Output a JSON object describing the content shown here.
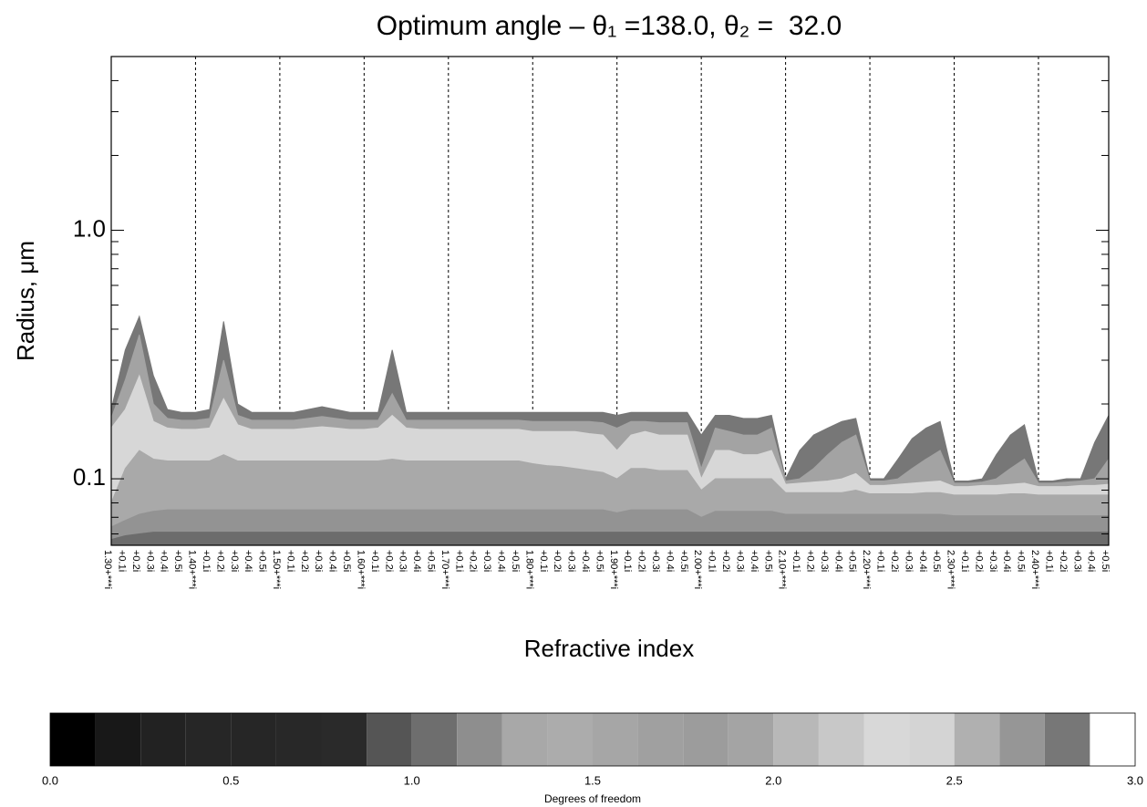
{
  "chart_data": {
    "type": "contour",
    "title": "Optimum angle – θ₁ =138.0, θ₂ =  32.0",
    "x_label": "Refractive index",
    "y_label": "Radius, μm",
    "y_log": true,
    "ylim": [
      0.054,
      5
    ],
    "yticks": [
      0.1,
      {
        "value": 1,
        "label": "1.0"
      }
    ],
    "yminorticks": [
      0.06,
      0.07,
      0.08,
      0.09,
      0.2,
      0.3,
      0.4,
      0.5,
      0.6,
      0.7,
      0.8,
      0.9,
      2,
      3,
      4,
      5
    ],
    "background": "#ffffff",
    "categories": [
      "1.30+***i",
      "+0.1i",
      "+0.2i",
      "+0.3i",
      "+0.4i",
      "+0.5i",
      "1.40+***i",
      "+0.1i",
      "+0.2i",
      "+0.3i",
      "+0.4i",
      "+0.5i",
      "1.50+***i",
      "+0.1i",
      "+0.2i",
      "+0.3i",
      "+0.4i",
      "+0.5i",
      "1.60+***i",
      "+0.1i",
      "+0.2i",
      "+0.3i",
      "+0.4i",
      "+0.5i",
      "1.70+***i",
      "+0.1i",
      "+0.2i",
      "+0.3i",
      "+0.4i",
      "+0.5i",
      "1.80+***i",
      "+0.1i",
      "+0.2i",
      "+0.3i",
      "+0.4i",
      "+0.5i",
      "1.90+***i",
      "+0.1i",
      "+0.2i",
      "+0.3i",
      "+0.4i",
      "+0.5i",
      "2.00+***i",
      "+0.1i",
      "+0.2i",
      "+0.3i",
      "+0.4i",
      "+0.5i",
      "2.10+***i",
      "+0.1i",
      "+0.2i",
      "+0.3i",
      "+0.4i",
      "+0.5i",
      "2.20+***i",
      "+0.1i",
      "+0.2i",
      "+0.3i",
      "+0.4i",
      "+0.5i",
      "2.30+***i",
      "+0.1i",
      "+0.2i",
      "+0.3i",
      "+0.4i",
      "+0.5i",
      "2.40+***i",
      "+0.1i",
      "+0.2i",
      "+0.3i",
      "+0.4i",
      "+0.5i"
    ],
    "series": [
      {
        "color": "#777777",
        "values": [
          0.19,
          0.33,
          0.45,
          0.26,
          0.19,
          0.185,
          0.185,
          0.19,
          0.43,
          0.2,
          0.185,
          0.185,
          0.185,
          0.185,
          0.19,
          0.195,
          0.19,
          0.185,
          0.185,
          0.185,
          0.33,
          0.185,
          0.185,
          0.185,
          0.185,
          0.185,
          0.185,
          0.185,
          0.185,
          0.185,
          0.185,
          0.185,
          0.185,
          0.185,
          0.185,
          0.185,
          0.18,
          0.185,
          0.185,
          0.185,
          0.185,
          0.185,
          0.15,
          0.18,
          0.18,
          0.175,
          0.175,
          0.18,
          0.1,
          0.13,
          0.15,
          0.16,
          0.17,
          0.175,
          0.1,
          0.1,
          0.12,
          0.145,
          0.16,
          0.17,
          0.098,
          0.098,
          0.1,
          0.125,
          0.15,
          0.165,
          0.098,
          0.098,
          0.1,
          0.1,
          0.14,
          0.18
        ]
      },
      {
        "color": "#a3a3a3",
        "values": [
          0.175,
          0.25,
          0.38,
          0.2,
          0.175,
          0.172,
          0.172,
          0.175,
          0.3,
          0.18,
          0.172,
          0.172,
          0.172,
          0.172,
          0.175,
          0.178,
          0.175,
          0.172,
          0.172,
          0.172,
          0.22,
          0.172,
          0.172,
          0.172,
          0.172,
          0.172,
          0.172,
          0.172,
          0.172,
          0.172,
          0.17,
          0.17,
          0.17,
          0.17,
          0.17,
          0.168,
          0.16,
          0.17,
          0.17,
          0.168,
          0.168,
          0.168,
          0.11,
          0.16,
          0.155,
          0.15,
          0.15,
          0.16,
          0.098,
          0.1,
          0.11,
          0.125,
          0.14,
          0.15,
          0.098,
          0.098,
          0.1,
          0.11,
          0.12,
          0.13,
          0.096,
          0.096,
          0.097,
          0.1,
          0.11,
          0.12,
          0.096,
          0.096,
          0.097,
          0.098,
          0.1,
          0.12
        ]
      },
      {
        "color": "#d7d7d7",
        "values": [
          0.16,
          0.19,
          0.26,
          0.17,
          0.16,
          0.158,
          0.158,
          0.16,
          0.21,
          0.165,
          0.158,
          0.158,
          0.158,
          0.158,
          0.16,
          0.162,
          0.16,
          0.158,
          0.158,
          0.16,
          0.18,
          0.16,
          0.158,
          0.158,
          0.158,
          0.158,
          0.158,
          0.158,
          0.158,
          0.158,
          0.155,
          0.155,
          0.155,
          0.155,
          0.152,
          0.15,
          0.13,
          0.15,
          0.155,
          0.15,
          0.15,
          0.15,
          0.1,
          0.13,
          0.13,
          0.125,
          0.125,
          0.13,
          0.095,
          0.096,
          0.097,
          0.098,
          0.1,
          0.105,
          0.094,
          0.094,
          0.095,
          0.096,
          0.097,
          0.098,
          0.093,
          0.093,
          0.094,
          0.094,
          0.095,
          0.096,
          0.093,
          0.093,
          0.093,
          0.094,
          0.094,
          0.095
        ]
      },
      {
        "color": "#a9a9a9",
        "values": [
          0.08,
          0.11,
          0.13,
          0.12,
          0.118,
          0.118,
          0.118,
          0.118,
          0.125,
          0.118,
          0.118,
          0.118,
          0.118,
          0.118,
          0.118,
          0.118,
          0.118,
          0.118,
          0.118,
          0.118,
          0.12,
          0.118,
          0.118,
          0.118,
          0.118,
          0.118,
          0.118,
          0.118,
          0.118,
          0.118,
          0.115,
          0.113,
          0.112,
          0.11,
          0.108,
          0.106,
          0.1,
          0.11,
          0.11,
          0.108,
          0.108,
          0.108,
          0.09,
          0.1,
          0.1,
          0.1,
          0.1,
          0.1,
          0.088,
          0.088,
          0.088,
          0.088,
          0.088,
          0.09,
          0.087,
          0.087,
          0.087,
          0.087,
          0.088,
          0.088,
          0.086,
          0.086,
          0.086,
          0.086,
          0.087,
          0.087,
          0.086,
          0.086,
          0.086,
          0.086,
          0.086,
          0.086
        ]
      },
      {
        "color": "#939393",
        "values": [
          0.064,
          0.068,
          0.072,
          0.074,
          0.075,
          0.075,
          0.075,
          0.075,
          0.075,
          0.075,
          0.075,
          0.075,
          0.075,
          0.075,
          0.075,
          0.075,
          0.075,
          0.075,
          0.075,
          0.075,
          0.075,
          0.075,
          0.075,
          0.075,
          0.075,
          0.075,
          0.075,
          0.075,
          0.075,
          0.075,
          0.075,
          0.075,
          0.075,
          0.075,
          0.075,
          0.075,
          0.073,
          0.075,
          0.075,
          0.075,
          0.075,
          0.075,
          0.07,
          0.074,
          0.074,
          0.074,
          0.074,
          0.074,
          0.072,
          0.072,
          0.072,
          0.072,
          0.072,
          0.072,
          0.072,
          0.072,
          0.072,
          0.072,
          0.072,
          0.072,
          0.071,
          0.071,
          0.071,
          0.071,
          0.071,
          0.071,
          0.071,
          0.071,
          0.071,
          0.071,
          0.071,
          0.071
        ]
      },
      {
        "color": "#6c6c6c",
        "values": [
          0.057,
          0.059,
          0.06,
          0.061,
          0.061,
          0.061,
          0.061,
          0.061,
          0.061,
          0.061,
          0.061,
          0.061,
          0.061,
          0.061,
          0.061,
          0.061,
          0.061,
          0.061,
          0.061,
          0.061,
          0.061,
          0.061,
          0.061,
          0.061,
          0.061,
          0.061,
          0.061,
          0.061,
          0.061,
          0.061,
          0.061,
          0.061,
          0.061,
          0.061,
          0.061,
          0.061,
          0.061,
          0.061,
          0.061,
          0.061,
          0.061,
          0.061,
          0.061,
          0.061,
          0.061,
          0.061,
          0.061,
          0.061,
          0.061,
          0.061,
          0.061,
          0.061,
          0.061,
          0.061,
          0.061,
          0.061,
          0.061,
          0.061,
          0.061,
          0.061,
          0.061,
          0.061,
          0.061,
          0.061,
          0.061,
          0.061,
          0.061,
          0.061,
          0.061,
          0.061,
          0.061,
          0.061
        ]
      }
    ],
    "colorbar": {
      "label": "Degrees of freedom",
      "lim": [
        0,
        3
      ],
      "ticks": [
        {
          "value": 0,
          "label": "0.0"
        },
        0.5,
        {
          "value": 1,
          "label": "1.0"
        },
        1.5,
        {
          "value": 2,
          "label": "2.0"
        },
        2.5,
        {
          "value": 3,
          "label": "3.0"
        }
      ],
      "levels": [
        0,
        0.125,
        0.25,
        0.375,
        0.5,
        0.625,
        0.75,
        0.875,
        1,
        1.125,
        1.25,
        1.375,
        1.5,
        1.625,
        1.75,
        1.875,
        2,
        2.125,
        2.25,
        2.375,
        2.5,
        2.625,
        2.75,
        2.875,
        3
      ],
      "colors": [
        "#000000",
        "#181818",
        "#222222",
        "#262626",
        "#262626",
        "#282828",
        "#2a2a2a",
        "#555555",
        "#6e6e6e",
        "#8e8e8e",
        "#a8a8a8",
        "#acacac",
        "#a6a6a6",
        "#a0a0a0",
        "#9c9c9c",
        "#a4a4a4",
        "#b8b8b8",
        "#c8c8c8",
        "#d8d8d8",
        "#d4d4d4",
        "#b0b0b0",
        "#969696",
        "#777777",
        "#ffffff"
      ]
    }
  }
}
